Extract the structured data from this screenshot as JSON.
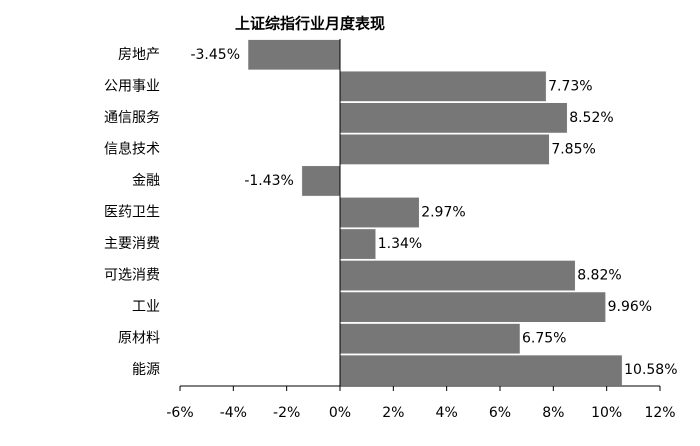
{
  "chart_data": {
    "type": "barh",
    "title": "上证综指行业月度表现",
    "categories": [
      "房地产",
      "公用事业",
      "通信服务",
      "信息技术",
      "金融",
      "医药卫生",
      "主要消费",
      "可选消费",
      "工业",
      "原材料",
      "能源"
    ],
    "values": [
      -3.45,
      7.73,
      8.52,
      7.85,
      -1.43,
      2.97,
      1.34,
      8.82,
      9.96,
      6.75,
      10.58
    ],
    "value_labels": [
      "-3.45%",
      "7.73%",
      "8.52%",
      "7.85%",
      "-1.43%",
      "2.97%",
      "1.34%",
      "8.82%",
      "9.96%",
      "6.75%",
      "10.58%"
    ],
    "color": "#777777",
    "xlim": [
      -6,
      12
    ],
    "xticks": [
      {
        "value": -6,
        "label": "-6%"
      },
      {
        "value": -4,
        "label": "-4%"
      },
      {
        "value": -2,
        "label": "-2%"
      },
      {
        "value": 0,
        "label": "0%"
      },
      {
        "value": 2,
        "label": "2%"
      },
      {
        "value": 4,
        "label": "4%"
      },
      {
        "value": 6,
        "label": "6%"
      },
      {
        "value": 8,
        "label": "8%"
      },
      {
        "value": 10,
        "label": "10%"
      },
      {
        "value": 12,
        "label": "12%"
      }
    ]
  }
}
